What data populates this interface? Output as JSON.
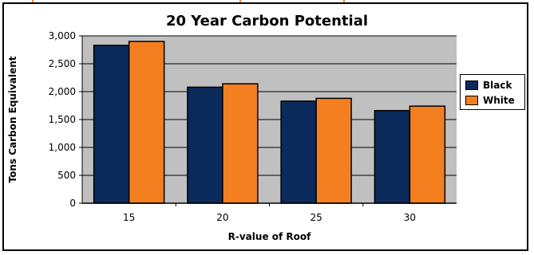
{
  "chart_data": {
    "type": "bar",
    "title": "20 Year Carbon Potential",
    "xlabel": "R-value of Roof",
    "ylabel": "Tons Carbon Equivalent",
    "categories": [
      "15",
      "20",
      "25",
      "30"
    ],
    "series": [
      {
        "name": "Black",
        "values": [
          2830,
          2080,
          1830,
          1660
        ]
      },
      {
        "name": "White",
        "values": [
          2900,
          2140,
          1880,
          1740
        ]
      }
    ],
    "ylim": [
      0,
      3000
    ],
    "yticks": [
      0,
      500,
      1000,
      1500,
      2000,
      2500,
      3000
    ],
    "ytick_labels": [
      "0",
      "500",
      "1,000",
      "1,500",
      "2,000",
      "2,500",
      "3,000"
    ],
    "grid": true,
    "legend_position": "right",
    "colors": {
      "Black": "#0b2a5c",
      "White": "#f47f20",
      "plot_background": "#c0c0c0",
      "gridline": "#000000",
      "accent_marks": "#f08a2a"
    }
  }
}
